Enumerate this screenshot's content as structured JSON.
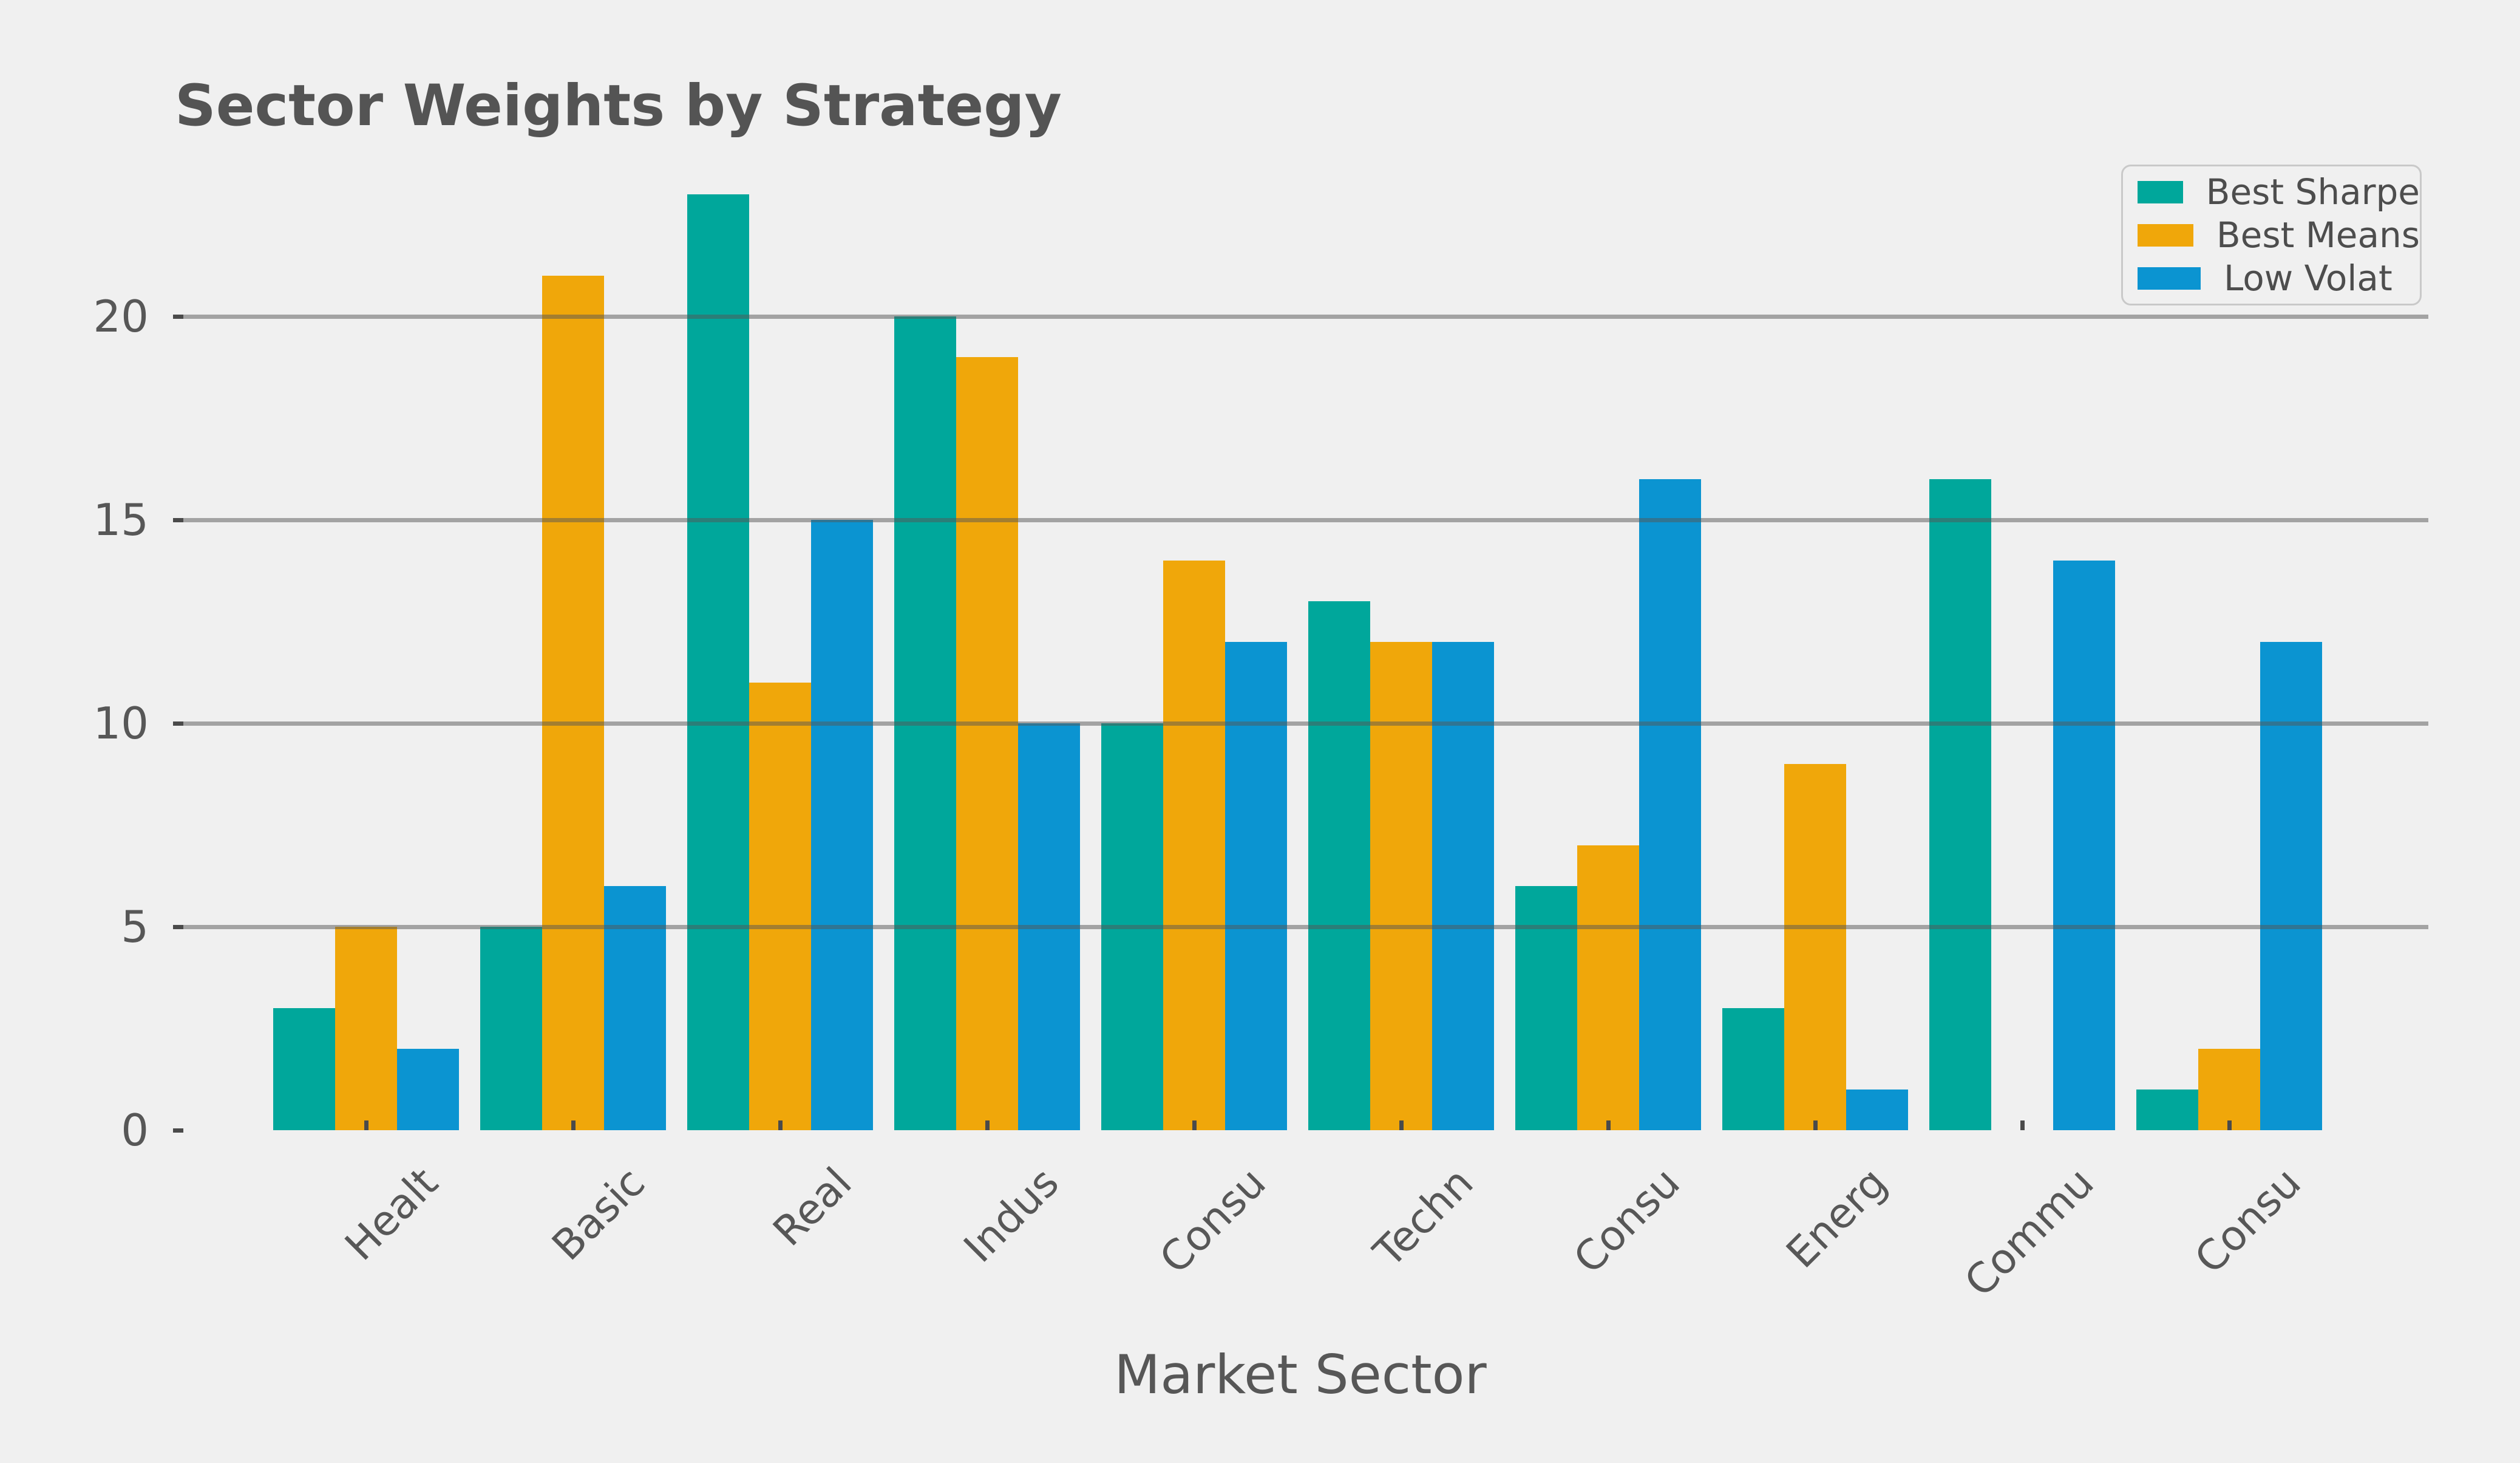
{
  "colors": {
    "background": "#F0F0F0",
    "grid": "#ABABAB",
    "tick": "#4A4A4A",
    "text": "#575757",
    "title_text": "#545454",
    "legend_border": "#C9C9C9",
    "series_teal": "#00A79B",
    "series_orange": "#F0A70A",
    "series_blue": "#0B94D1"
  },
  "chart_data": {
    "type": "bar",
    "title": "Sector Weights by Strategy",
    "xlabel": "Market Sector",
    "ylabel": "",
    "categories": [
      "Healt",
      "Basic",
      "Real",
      "Indus",
      "Consu",
      "Techn",
      "Consu",
      "Energ",
      "Commu",
      "Consu"
    ],
    "series": [
      {
        "name": "Best Sharpe",
        "color": "#00A79B",
        "values": [
          3,
          5,
          23,
          20,
          10,
          13,
          6,
          3,
          16,
          1
        ]
      },
      {
        "name": "Best Means",
        "color": "#F0A70A",
        "values": [
          5,
          21,
          11,
          19,
          14,
          12,
          7,
          9,
          0,
          2
        ]
      },
      {
        "name": "Low Volat",
        "color": "#0B94D1",
        "values": [
          2,
          6,
          15,
          10,
          12,
          12,
          16,
          1,
          14,
          12
        ]
      }
    ],
    "yticks": [
      0,
      5,
      10,
      15,
      20
    ],
    "ylim": [
      0,
      23.5
    ],
    "grid": true,
    "grid_over_bars": true,
    "legend_position": "upper right"
  }
}
